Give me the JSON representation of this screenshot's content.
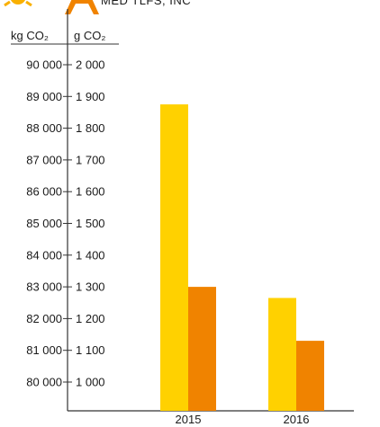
{
  "top_fragment": "MED TLFS, INC",
  "colors": {
    "series_primary": "#FFD100",
    "series_secondary": "#F08300",
    "axis": "#333333",
    "icon": "#F9B000"
  },
  "icons": [
    "sun-icon",
    "person-icon"
  ],
  "chart_data": {
    "type": "bar",
    "categories": [
      "2015",
      "2016"
    ],
    "series": [
      {
        "values": [
          88750,
          82650
        ]
      },
      {
        "values": [
          1300,
          1130
        ]
      }
    ],
    "axes": {
      "left": {
        "header": "kg CO₂",
        "ticks": [
          "90 000",
          "89 000",
          "88 000",
          "87 000",
          "86 000",
          "85 000",
          "84 000",
          "83 000",
          "82 000",
          "81 000",
          "80 000"
        ],
        "ylim": [
          79000,
          90000
        ]
      },
      "right": {
        "header": "g CO₂",
        "ticks": [
          "2 000",
          "1 900",
          "1 800",
          "1 700",
          "1 600",
          "1 500",
          "1 400",
          "1 300",
          "1 200",
          "1 100",
          "1 000"
        ],
        "ylim": [
          900,
          2000
        ]
      }
    },
    "grid": false,
    "legend": "none"
  }
}
